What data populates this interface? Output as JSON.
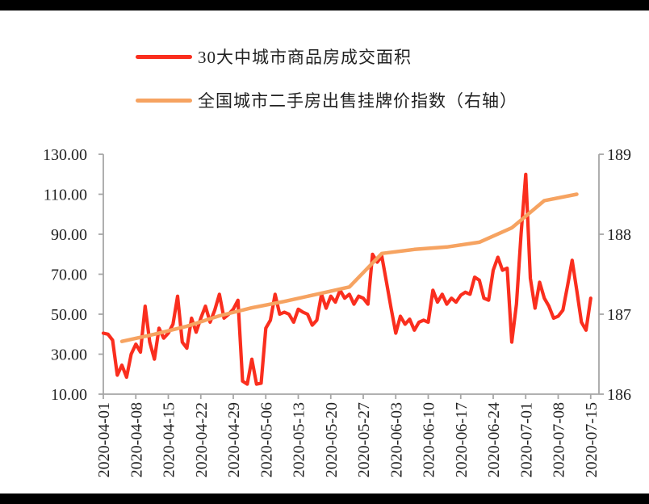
{
  "page": {
    "background": "#ffffff",
    "top_bar_color": "#000000",
    "bottom_bar_color": "#000000"
  },
  "legend": {
    "position": "top-left",
    "items": [
      {
        "label": "30大中城市商品房成交面积",
        "color": "#fa2e1e",
        "axis": "left"
      },
      {
        "label": "全国城市二手房出售挂牌价指数（右轴）",
        "color": "#f6a361",
        "axis": "right"
      }
    ]
  },
  "chart_data": {
    "type": "line",
    "title": "",
    "grid": false,
    "legend_position": "top-left",
    "axis_line_color": "#a6a6a6",
    "axis_label_color": "#1f1f1f",
    "x_axis": {
      "start": "2020-04-01",
      "end": "2020-07-15",
      "tick_labels": [
        "2020-04-01",
        "2020-04-08",
        "2020-04-15",
        "2020-04-22",
        "2020-04-29",
        "2020-05-06",
        "2020-05-13",
        "2020-05-20",
        "2020-05-27",
        "2020-06-03",
        "2020-06-10",
        "2020-06-17",
        "2020-06-24",
        "2020-07-01",
        "2020-07-08",
        "2020-07-15"
      ]
    },
    "left_y_axis": {
      "min": 10,
      "max": 130,
      "tick_values": [
        10,
        30,
        50,
        70,
        90,
        110,
        130
      ],
      "tick_labels": [
        "10.00",
        "30.00",
        "50.00",
        "70.00",
        "90.00",
        "110.00",
        "130.00"
      ]
    },
    "right_y_axis": {
      "min": 186,
      "max": 189,
      "tick_values": [
        186,
        187,
        188,
        189
      ],
      "tick_labels": [
        "186",
        "187",
        "188",
        "189"
      ]
    },
    "series": [
      {
        "name": "30大中城市商品房成交面积",
        "axis": "left",
        "color": "#fa2e1e",
        "stroke_width": 4.2,
        "frequency": "daily",
        "x_start_date": "2020-04-01",
        "x_step_days": 1,
        "values": [
          40.5,
          40,
          37,
          19.5,
          24.5,
          18.5,
          30,
          35,
          31,
          54,
          36,
          27.5,
          43,
          38,
          40.5,
          45,
          59,
          36,
          33,
          48,
          41,
          48,
          54,
          46,
          52,
          60,
          48,
          50,
          52.5,
          57,
          16.5,
          15,
          27.5,
          15,
          15.5,
          43,
          47,
          60,
          50,
          51,
          50,
          46,
          52.5,
          51,
          50,
          44.5,
          47,
          60,
          53,
          59,
          56,
          62,
          58,
          60,
          55,
          59,
          58,
          55,
          80,
          76,
          79,
          66,
          53,
          40.5,
          49,
          45,
          47.5,
          42,
          46,
          47,
          46,
          62,
          56,
          60,
          55,
          58,
          56,
          59.5,
          61,
          60,
          68.5,
          67,
          58,
          57,
          72,
          78.5,
          72,
          73,
          36,
          55,
          90,
          120,
          68,
          53,
          66,
          58,
          54,
          48,
          49,
          52,
          64,
          77,
          62,
          46,
          42,
          58
        ]
      },
      {
        "name": "全国城市二手房出售挂牌价指数（右轴）",
        "axis": "right",
        "color": "#f6a361",
        "stroke_width": 4.5,
        "frequency": "weekly",
        "dates": [
          "2020-04-05",
          "2020-04-12",
          "2020-04-19",
          "2020-04-26",
          "2020-05-03",
          "2020-05-10",
          "2020-05-17",
          "2020-05-24",
          "2020-05-31",
          "2020-06-07",
          "2020-06-14",
          "2020-06-21",
          "2020-06-28",
          "2020-07-05",
          "2020-07-12"
        ],
        "day_offsets": [
          4,
          11,
          18,
          25,
          32,
          39,
          46,
          53,
          60,
          67,
          74,
          81,
          88,
          95,
          102
        ],
        "values": [
          186.66,
          186.75,
          186.85,
          186.98,
          187.08,
          187.16,
          187.25,
          187.34,
          187.76,
          187.81,
          187.84,
          187.9,
          188.08,
          188.42,
          188.5
        ]
      }
    ]
  }
}
